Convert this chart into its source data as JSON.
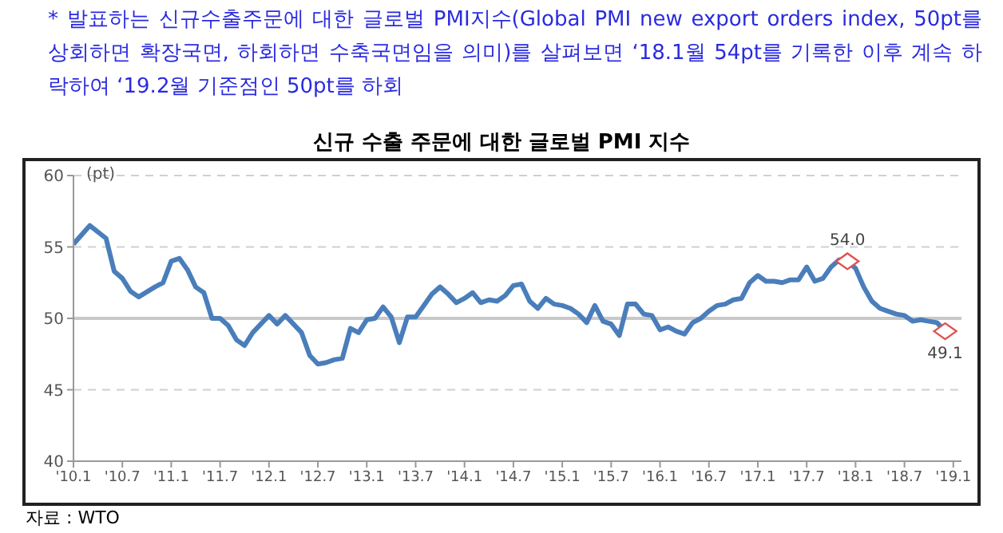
{
  "chart_data": {
    "type": "line",
    "title": "신규 수출 주문에 대한 글로벌 PMI 지수",
    "subtitle": "* 발표하는 신규수출주문에 대한 글로벌 PMI지수(Global PMI new export orders index, 50pt를 상회하면 확장국면, 하회하면 수축국면임을 의미)를 살펴보면 ‘18.1월 54pt를 기록한 이후 계속 하락하여 ‘19.2월 기준점인 50pt를 하회",
    "ylabel": "(pt)",
    "annotations": [
      {
        "text": "54.0",
        "x": "2017-12",
        "y": 54.0
      },
      {
        "text": "49.1",
        "x": "2018-12",
        "y": 49.1
      },
      "자료 : WTO"
    ],
    "series": [
      {
        "type": "line",
        "color": "#4a7ebb",
        "marker": "none",
        "x": [
          "2010-01",
          "2010-03",
          "2010-05",
          "2010-06",
          "2010-07",
          "2010-08",
          "2010-09",
          "2010-11",
          "2010-12",
          "2011-01",
          "2011-02",
          "2011-03",
          "2011-04",
          "2011-05",
          "2011-06",
          "2011-07",
          "2011-08",
          "2011-09",
          "2011-10",
          "2011-11",
          "2012-01",
          "2012-02",
          "2012-03",
          "2012-05",
          "2012-06",
          "2012-07",
          "2012-08",
          "2012-09",
          "2012-10",
          "2012-11",
          "2012-12",
          "2013-01",
          "2013-02",
          "2013-03",
          "2013-04",
          "2013-05",
          "2013-06",
          "2013-07",
          "2013-08",
          "2013-09",
          "2013-10",
          "2013-11",
          "2013-12",
          "2014-01",
          "2014-02",
          "2014-03",
          "2014-04",
          "2014-05",
          "2014-06",
          "2014-07",
          "2014-08",
          "2014-09",
          "2014-10",
          "2014-11",
          "2014-12",
          "2015-01",
          "2015-02",
          "2015-03",
          "2015-04",
          "2015-05",
          "2015-06",
          "2015-07",
          "2015-08",
          "2015-09",
          "2015-10",
          "2015-11",
          "2015-12",
          "2016-01",
          "2016-02",
          "2016-03",
          "2016-04",
          "2016-05",
          "2016-06",
          "2016-07",
          "2016-08",
          "2016-09",
          "2016-10",
          "2016-11",
          "2016-12",
          "2017-01",
          "2017-02",
          "2017-03",
          "2017-04",
          "2017-05",
          "2017-06",
          "2017-07",
          "2017-08",
          "2017-09",
          "2017-10",
          "2017-11",
          "2017-12",
          "2018-01",
          "2018-02",
          "2018-03",
          "2018-04",
          "2018-05",
          "2018-06",
          "2018-07",
          "2018-08",
          "2018-09",
          "2018-10",
          "2018-11",
          "2018-12"
        ],
        "values": [
          55.2,
          56.5,
          55.6,
          53.3,
          52.8,
          51.9,
          51.5,
          52.2,
          52.5,
          54.0,
          54.2,
          53.4,
          52.2,
          51.8,
          50.0,
          50.0,
          49.5,
          48.5,
          48.1,
          49.0,
          50.2,
          49.6,
          50.2,
          49.0,
          47.4,
          46.8,
          46.9,
          47.1,
          47.2,
          49.3,
          49.0,
          49.9,
          50.0,
          50.8,
          50.1,
          48.3,
          50.1,
          50.1,
          50.9,
          51.7,
          52.2,
          51.7,
          51.1,
          51.4,
          51.8,
          51.1,
          51.3,
          51.2,
          51.6,
          52.3,
          52.4,
          51.2,
          50.7,
          51.4,
          51.0,
          50.9,
          50.7,
          50.3,
          49.7,
          50.9,
          49.8,
          49.6,
          48.8,
          51.0,
          51.0,
          50.3,
          50.2,
          49.2,
          49.4,
          49.1,
          48.9,
          49.7,
          50.0,
          50.5,
          50.9,
          51.0,
          51.3,
          51.4,
          52.5,
          53.0,
          52.6,
          52.6,
          52.5,
          52.7,
          52.7,
          53.6,
          52.6,
          52.8,
          53.6,
          54.1,
          54.0,
          53.5,
          52.2,
          51.2,
          50.7,
          50.5,
          50.3,
          50.2,
          49.8,
          49.9,
          49.8,
          49.7,
          49.1
        ]
      },
      {
        "type": "scatter",
        "color": "#e05050",
        "marker": "diamond",
        "x": [
          "2017-12",
          "2018-12"
        ],
        "values": [
          54.0,
          49.1
        ]
      }
    ],
    "xlim": [
      "2010-01",
      "2019-02"
    ],
    "xticks": [
      {
        "value": "2010-01",
        "label": "'10.1"
      },
      {
        "value": "2010-07",
        "label": "'10.7"
      },
      {
        "value": "2011-01",
        "label": "'11.1"
      },
      {
        "value": "2011-07",
        "label": "'11.7"
      },
      {
        "value": "2012-01",
        "label": "'12.1"
      },
      {
        "value": "2012-07",
        "label": "'12.7"
      },
      {
        "value": "2013-01",
        "label": "'13.1"
      },
      {
        "value": "2013-07",
        "label": "'13.7"
      },
      {
        "value": "2014-01",
        "label": "'14.1"
      },
      {
        "value": "2014-07",
        "label": "'14.7"
      },
      {
        "value": "2015-01",
        "label": "'15.1"
      },
      {
        "value": "2015-07",
        "label": "'15.7"
      },
      {
        "value": "2016-01",
        "label": "'16.1"
      },
      {
        "value": "2016-07",
        "label": "'16.7"
      },
      {
        "value": "2017-01",
        "label": "'17.1"
      },
      {
        "value": "2017-07",
        "label": "'17.7"
      },
      {
        "value": "2018-01",
        "label": "'18.1"
      },
      {
        "value": "2018-07",
        "label": "'18.7"
      },
      {
        "value": "2019-01",
        "label": "'19.1"
      }
    ],
    "ylim": [
      40,
      60
    ],
    "yticks": [
      40,
      45,
      50,
      55,
      60
    ],
    "grid": "y",
    "legend": false,
    "ref_lines": [
      {
        "axis": "y",
        "value": 50,
        "color": "#c8c8c8",
        "line_style": "solid"
      }
    ]
  }
}
